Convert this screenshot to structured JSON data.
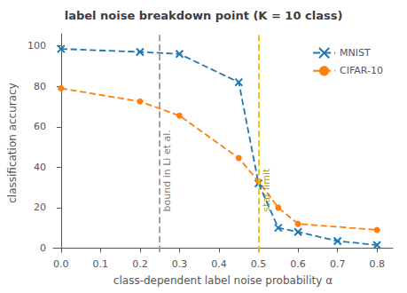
{
  "chart_data": {
    "type": "line",
    "title": "label noise breakdown point (K = 10 class)",
    "x_label": "class-dependent label noise probability α",
    "y_label": "classification accuracy",
    "series": [
      {
        "name": "MNIST",
        "color": "#1f77b4",
        "marker": "x",
        "line_style": "dashed",
        "x": [
          0.0,
          0.2,
          0.3,
          0.45,
          0.5,
          0.55,
          0.6,
          0.7,
          0.8
        ],
        "values": [
          98.5,
          97.0,
          96.0,
          82.0,
          32.0,
          10.0,
          8.0,
          3.5,
          1.5
        ]
      },
      {
        "name": "CIFAR-10",
        "color": "#ff7f0e",
        "marker": "circle",
        "line_style": "dashed",
        "x": [
          0.0,
          0.2,
          0.3,
          0.45,
          0.5,
          0.55,
          0.6,
          0.8
        ],
        "values": [
          79.0,
          72.5,
          65.5,
          44.5,
          33.0,
          20.0,
          12.0,
          9.0
        ]
      }
    ],
    "annotations": [
      {
        "x": 0.25,
        "y": 18,
        "text": "bound in Li et al.",
        "color": "#999999",
        "text_color": "#555555",
        "line_style": "dashed"
      },
      {
        "x": 0.5,
        "y": 18,
        "text": "stat limit",
        "color": "#e8c000",
        "text_color": "#888800",
        "line_style": "dashed"
      }
    ],
    "xlim": [
      -0.02,
      0.84
    ],
    "ylim": [
      -2,
      106
    ],
    "xticks": [
      {
        "value": 0.0,
        "label": "0.0"
      },
      0.1,
      0.2,
      0.3,
      0.4,
      0.5,
      0.6,
      0.7,
      0.8
    ],
    "yticks": [
      0,
      20,
      40,
      60,
      80,
      100
    ],
    "legend": "upper right",
    "grid": false
  }
}
